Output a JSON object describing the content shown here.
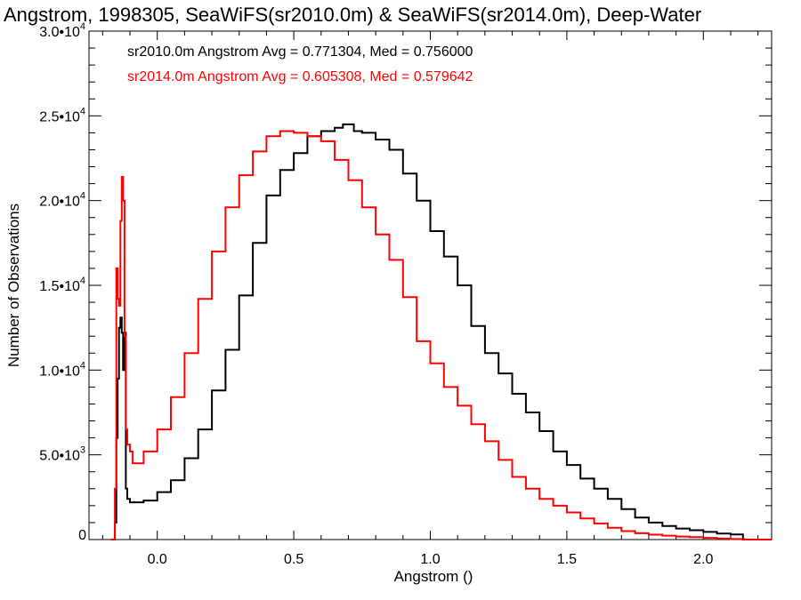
{
  "chart_data": {
    "type": "line",
    "title": "Angstrom, 1998305, SeaWiFS(sr2010.0m) & SeaWiFS(sr2014.0m), Deep-Water",
    "xlabel": "Angstrom ()",
    "ylabel": "Number of Observations",
    "xlim": [
      -0.25,
      2.25
    ],
    "ylim": [
      0,
      30000
    ],
    "xticks": [
      0.0,
      0.5,
      1.0,
      1.5,
      2.0
    ],
    "xtick_labels": [
      "0.0",
      "0.5",
      "1.0",
      "1.5",
      "2.0"
    ],
    "yticks": [
      {
        "value": 0,
        "mant": "0",
        "exp": ""
      },
      {
        "value": 5000,
        "mant": "5.0•1",
        "exp": "3"
      },
      {
        "value": 10000,
        "mant": "1.0•1",
        "exp": "4"
      },
      {
        "value": 15000,
        "mant": "1.5•1",
        "exp": "4"
      },
      {
        "value": 20000,
        "mant": "2.0•1",
        "exp": "4"
      },
      {
        "value": 25000,
        "mant": "2.5•1",
        "exp": "4"
      },
      {
        "value": 30000,
        "mant": "3.0•1",
        "exp": "4"
      }
    ],
    "grid": false,
    "legend_position": "top-left",
    "series": [
      {
        "label": "sr2010.0m Angstrom Avg = 0.771304, Med = 0.756000",
        "color": "#000000",
        "points": [
          [
            -0.17,
            0
          ],
          [
            -0.16,
            0
          ],
          [
            -0.155,
            1000
          ],
          [
            -0.15,
            6000
          ],
          [
            -0.145,
            9500
          ],
          [
            -0.14,
            12500
          ],
          [
            -0.135,
            13100
          ],
          [
            -0.13,
            12200
          ],
          [
            -0.125,
            10000
          ],
          [
            -0.12,
            12200
          ],
          [
            -0.115,
            3000
          ],
          [
            -0.11,
            2400
          ],
          [
            -0.1,
            2200
          ],
          [
            -0.05,
            2300
          ],
          [
            0.0,
            2800
          ],
          [
            0.05,
            3500
          ],
          [
            0.1,
            4800
          ],
          [
            0.15,
            6500
          ],
          [
            0.2,
            8800
          ],
          [
            0.25,
            11200
          ],
          [
            0.3,
            14400
          ],
          [
            0.35,
            17500
          ],
          [
            0.4,
            20300
          ],
          [
            0.45,
            21800
          ],
          [
            0.5,
            22800
          ],
          [
            0.55,
            23800
          ],
          [
            0.6,
            24100
          ],
          [
            0.65,
            24300
          ],
          [
            0.68,
            24500
          ],
          [
            0.72,
            24100
          ],
          [
            0.75,
            24000
          ],
          [
            0.8,
            23600
          ],
          [
            0.85,
            23000
          ],
          [
            0.9,
            21600
          ],
          [
            0.95,
            20000
          ],
          [
            1.0,
            18200
          ],
          [
            1.05,
            16700
          ],
          [
            1.1,
            15000
          ],
          [
            1.15,
            12600
          ],
          [
            1.2,
            11000
          ],
          [
            1.25,
            9800
          ],
          [
            1.3,
            8600
          ],
          [
            1.35,
            7500
          ],
          [
            1.4,
            6400
          ],
          [
            1.45,
            5200
          ],
          [
            1.5,
            4400
          ],
          [
            1.55,
            3600
          ],
          [
            1.6,
            3000
          ],
          [
            1.65,
            2400
          ],
          [
            1.7,
            1800
          ],
          [
            1.75,
            1300
          ],
          [
            1.8,
            1000
          ],
          [
            1.85,
            800
          ],
          [
            1.9,
            650
          ],
          [
            1.95,
            550
          ],
          [
            2.0,
            450
          ],
          [
            2.05,
            350
          ],
          [
            2.1,
            300
          ],
          [
            2.14,
            300
          ],
          [
            2.145,
            0
          ],
          [
            2.25,
            0
          ]
        ]
      },
      {
        "label": "sr2014.0m Angstrom Avg = 0.605308, Med = 0.579642",
        "color": "#ff0000",
        "points": [
          [
            -0.17,
            0
          ],
          [
            -0.16,
            0
          ],
          [
            -0.155,
            3000
          ],
          [
            -0.15,
            16000
          ],
          [
            -0.145,
            14200
          ],
          [
            -0.14,
            13800
          ],
          [
            -0.135,
            18800
          ],
          [
            -0.13,
            21400
          ],
          [
            -0.125,
            20000
          ],
          [
            -0.12,
            12000
          ],
          [
            -0.115,
            6500
          ],
          [
            -0.11,
            5600
          ],
          [
            -0.1,
            5200
          ],
          [
            -0.09,
            4500
          ],
          [
            -0.05,
            5200
          ],
          [
            0.0,
            6500
          ],
          [
            0.05,
            8400
          ],
          [
            0.1,
            11000
          ],
          [
            0.15,
            14200
          ],
          [
            0.2,
            17000
          ],
          [
            0.25,
            19600
          ],
          [
            0.3,
            21500
          ],
          [
            0.35,
            22900
          ],
          [
            0.4,
            23800
          ],
          [
            0.45,
            24100
          ],
          [
            0.5,
            24000
          ],
          [
            0.55,
            23800
          ],
          [
            0.6,
            23500
          ],
          [
            0.65,
            22400
          ],
          [
            0.7,
            21200
          ],
          [
            0.75,
            19600
          ],
          [
            0.8,
            18000
          ],
          [
            0.85,
            16500
          ],
          [
            0.9,
            14300
          ],
          [
            0.95,
            11700
          ],
          [
            1.0,
            10400
          ],
          [
            1.05,
            9000
          ],
          [
            1.1,
            7900
          ],
          [
            1.15,
            6800
          ],
          [
            1.2,
            5800
          ],
          [
            1.25,
            4700
          ],
          [
            1.3,
            3700
          ],
          [
            1.35,
            3000
          ],
          [
            1.4,
            2400
          ],
          [
            1.45,
            2000
          ],
          [
            1.5,
            1600
          ],
          [
            1.55,
            1250
          ],
          [
            1.6,
            950
          ],
          [
            1.65,
            700
          ],
          [
            1.7,
            500
          ],
          [
            1.75,
            370
          ],
          [
            1.8,
            290
          ],
          [
            1.85,
            230
          ],
          [
            1.9,
            180
          ],
          [
            1.95,
            140
          ],
          [
            2.0,
            100
          ],
          [
            2.05,
            60
          ],
          [
            2.1,
            30
          ],
          [
            2.15,
            0
          ],
          [
            2.25,
            0
          ]
        ]
      }
    ]
  }
}
